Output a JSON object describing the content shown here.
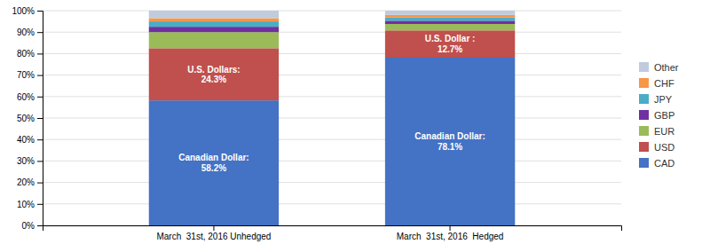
{
  "chart_data": {
    "type": "bar",
    "stacked": true,
    "categories": [
      "March  31st, 2016 Unhedged",
      "March  31st, 2016  Hedged"
    ],
    "series": [
      {
        "name": "CAD",
        "color": "#4472C4",
        "values": [
          58.2,
          78.1
        ]
      },
      {
        "name": "USD",
        "color": "#C0504D",
        "values": [
          24.3,
          12.7
        ]
      },
      {
        "name": "EUR",
        "color": "#9BBB59",
        "values": [
          7.5,
          3.0
        ]
      },
      {
        "name": "GBP",
        "color": "#7030A0",
        "values": [
          2.5,
          1.5
        ]
      },
      {
        "name": "JPY",
        "color": "#4BACC6",
        "values": [
          2.5,
          1.5
        ]
      },
      {
        "name": "CHF",
        "color": "#F79646",
        "values": [
          1.5,
          1.2
        ]
      },
      {
        "name": "Other",
        "color": "#C0CBDE",
        "values": [
          3.5,
          2.0
        ]
      }
    ],
    "annotations": [
      {
        "text": "Canadian Dollar:\n58.2%",
        "series": 0,
        "category": 0,
        "color": "white"
      },
      {
        "text": "U.S. Dollars:\n24.3%",
        "series": 1,
        "category": 0,
        "color": "white"
      },
      {
        "text": "Canadian Dollar:\n78.1%",
        "series": 0,
        "category": 1,
        "color": "white"
      },
      {
        "text": "U.S. Dollar :\n12.7%",
        "series": 1,
        "category": 1,
        "color": "white"
      }
    ],
    "ylim": [
      0,
      100
    ],
    "yticks": [
      {
        "value": 0,
        "label": "0%"
      },
      {
        "value": 10,
        "label": "10%"
      },
      {
        "value": 20,
        "label": "20%"
      },
      {
        "value": 30,
        "label": "30%"
      },
      {
        "value": 40,
        "label": "40%"
      },
      {
        "value": 50,
        "label": "50%"
      },
      {
        "value": 60,
        "label": "60%"
      },
      {
        "value": 70,
        "label": "70%"
      },
      {
        "value": 80,
        "label": "80%"
      },
      {
        "value": 90,
        "label": "90%"
      },
      {
        "value": 100,
        "label": "100%"
      }
    ],
    "grid": true,
    "legend": "right"
  }
}
